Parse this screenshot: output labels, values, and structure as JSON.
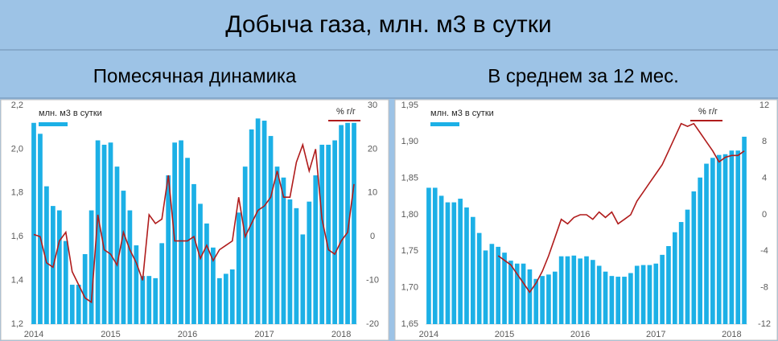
{
  "title": "Добыча газа, млн. м3 в сутки",
  "chart_data": [
    {
      "type": "combo",
      "title": "Помесячная динамика",
      "categories": [
        "2014",
        null,
        null,
        null,
        null,
        null,
        null,
        null,
        null,
        null,
        null,
        null,
        "2015",
        null,
        null,
        null,
        null,
        null,
        null,
        null,
        null,
        null,
        null,
        null,
        "2016",
        null,
        null,
        null,
        null,
        null,
        null,
        null,
        null,
        null,
        null,
        null,
        "2017",
        null,
        null,
        null,
        null,
        null,
        null,
        null,
        null,
        null,
        null,
        null,
        "2018",
        null,
        null
      ],
      "ylim": [
        1.2,
        2.2
      ],
      "yticks": [
        {
          "value": 1.2,
          "label": "1,2"
        },
        {
          "value": 1.4,
          "label": "1,4"
        },
        {
          "value": 1.6,
          "label": "1,6"
        },
        {
          "value": 1.8,
          "label": "1,8"
        },
        {
          "value": 2.0,
          "label": "2,0"
        },
        {
          "value": 2.2,
          "label": "2,2"
        }
      ],
      "y2lim": [
        -20,
        30
      ],
      "y2ticks": [
        -20,
        -10,
        0,
        10,
        20,
        30
      ],
      "series": [
        {
          "name": "млн. м3 в сутки",
          "color": "#1cb0e6",
          "values": [
            2.12,
            2.07,
            1.83,
            1.74,
            1.72,
            1.58,
            1.38,
            1.38,
            1.52,
            1.72,
            2.04,
            2.02,
            2.03,
            1.92,
            1.81,
            1.72,
            1.56,
            1.42,
            1.42,
            1.41,
            1.57,
            1.88,
            2.03,
            2.04,
            1.96,
            1.84,
            1.75,
            1.66,
            1.55,
            1.41,
            1.43,
            1.45,
            1.71,
            1.92,
            2.09,
            2.14,
            2.13,
            2.06,
            1.92,
            1.87,
            1.77,
            1.73,
            1.61,
            1.76,
            1.88,
            2.02,
            2.02,
            2.04,
            2.11,
            2.12,
            2.12
          ]
        },
        {
          "name": "% г/г",
          "color": "#b01c1c",
          "axis": "y2",
          "values": [
            0.5,
            0,
            -6,
            -7,
            -1,
            1,
            -8,
            -11,
            -14,
            -15,
            5,
            -3,
            -4,
            -6.5,
            1,
            -3,
            -6,
            -10,
            5,
            3,
            4,
            14,
            -1,
            -1,
            -1,
            0,
            -5,
            -2,
            -5.5,
            -3,
            -2,
            -1,
            9,
            0,
            3,
            6,
            7,
            9,
            15,
            9,
            9,
            17,
            21,
            15,
            20,
            4,
            -3,
            -4,
            -1,
            1,
            12
          ]
        }
      ]
    },
    {
      "type": "combo",
      "title": "В среднем за 12 мес.",
      "categories": [
        "2014",
        null,
        null,
        null,
        null,
        null,
        null,
        null,
        null,
        null,
        null,
        null,
        "2015",
        null,
        null,
        null,
        null,
        null,
        null,
        null,
        null,
        null,
        null,
        null,
        "2016",
        null,
        null,
        null,
        null,
        null,
        null,
        null,
        null,
        null,
        null,
        null,
        "2017",
        null,
        null,
        null,
        null,
        null,
        null,
        null,
        null,
        null,
        null,
        null,
        "2018",
        null,
        null
      ],
      "ylim": [
        1.65,
        1.95
      ],
      "yticks": [
        {
          "value": 1.65,
          "label": "1,65"
        },
        {
          "value": 1.7,
          "label": "1,70"
        },
        {
          "value": 1.75,
          "label": "1,75"
        },
        {
          "value": 1.8,
          "label": "1,80"
        },
        {
          "value": 1.85,
          "label": "1,85"
        },
        {
          "value": 1.9,
          "label": "1,90"
        },
        {
          "value": 1.95,
          "label": "1,95"
        }
      ],
      "y2lim": [
        -12,
        12
      ],
      "y2ticks": [
        -12,
        -8,
        -4,
        0,
        4,
        8,
        12
      ],
      "series": [
        {
          "name": "млн. м3 в сутки",
          "color": "#1cb0e6",
          "values": [
            1.837,
            1.837,
            1.826,
            1.817,
            1.817,
            1.822,
            1.81,
            1.797,
            1.775,
            1.751,
            1.76,
            1.756,
            1.748,
            1.737,
            1.733,
            1.733,
            1.725,
            1.712,
            1.716,
            1.718,
            1.722,
            1.743,
            1.743,
            1.744,
            1.74,
            1.743,
            1.738,
            1.73,
            1.722,
            1.716,
            1.715,
            1.715,
            1.72,
            1.73,
            1.731,
            1.731,
            1.733,
            1.745,
            1.757,
            1.776,
            1.79,
            1.807,
            1.832,
            1.851,
            1.87,
            1.878,
            1.882,
            1.883,
            1.888,
            1.888,
            1.907
          ]
        },
        {
          "name": "% г/г",
          "color": "#b01c1c",
          "axis": "y2",
          "values": [
            null,
            null,
            null,
            null,
            null,
            null,
            null,
            null,
            null,
            null,
            null,
            -4.5,
            -5,
            -5.5,
            -6.5,
            -7.5,
            -8.5,
            -7.5,
            -6.2,
            -4.5,
            -2.5,
            -0.5,
            -1,
            -0.3,
            0,
            0,
            -0.5,
            0.3,
            -0.3,
            0.3,
            -1,
            -0.5,
            0,
            1.5,
            2.5,
            3.5,
            4.5,
            5.5,
            7,
            8.5,
            10,
            9.7,
            10,
            9,
            8,
            7,
            5.8,
            6.3,
            6.5,
            6.5,
            7
          ]
        }
      ]
    }
  ]
}
